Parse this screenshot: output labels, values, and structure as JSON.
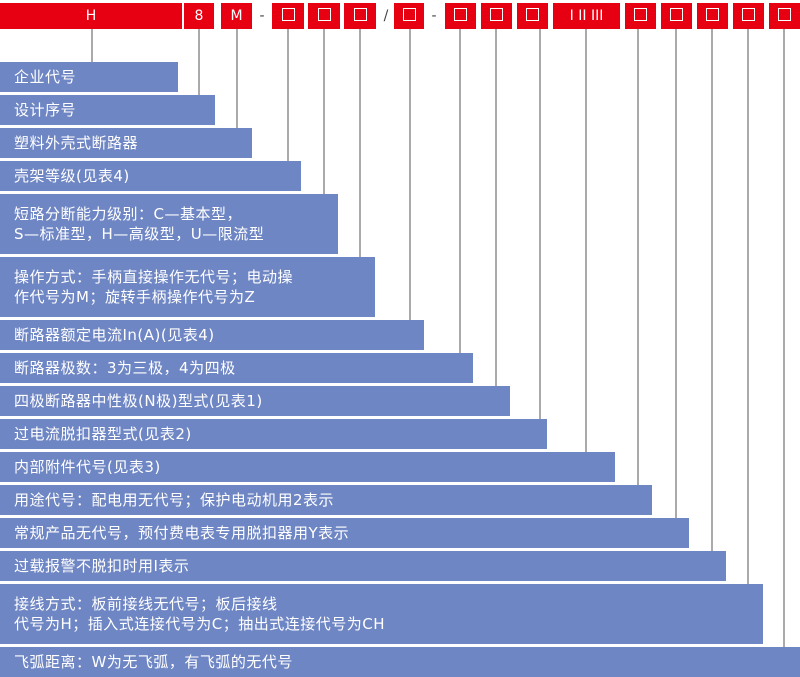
{
  "code_parts": [
    {
      "text": "H",
      "type": "text"
    },
    {
      "text": "8",
      "type": "text"
    },
    {
      "text": "M",
      "type": "text"
    },
    {
      "text": "-",
      "type": "sep"
    },
    {
      "text": "□",
      "type": "square"
    },
    {
      "text": "□",
      "type": "square"
    },
    {
      "text": "□",
      "type": "square"
    },
    {
      "text": "/",
      "type": "sep"
    },
    {
      "text": "□",
      "type": "square"
    },
    {
      "text": "-",
      "type": "sep"
    },
    {
      "text": "□",
      "type": "square"
    },
    {
      "text": "□",
      "type": "square"
    },
    {
      "text": "□",
      "type": "square"
    },
    {
      "text": "I II III",
      "type": "text"
    },
    {
      "text": "□",
      "type": "square"
    },
    {
      "text": "□",
      "type": "square"
    },
    {
      "text": "□",
      "type": "square"
    },
    {
      "text": "□",
      "type": "square"
    },
    {
      "text": "□",
      "type": "square"
    }
  ],
  "items": [
    {
      "lines": [
        "企业代号"
      ]
    },
    {
      "lines": [
        "设计序号"
      ]
    },
    {
      "lines": [
        "塑料外壳式断路器"
      ]
    },
    {
      "lines": [
        "壳架等级(见表4)"
      ]
    },
    {
      "lines": [
        "短路分断能力级别：C—基本型，",
        "S—标准型，H—高级型，U—限流型"
      ]
    },
    {
      "lines": [
        "操作方式：手柄直接操作无代号；电动操",
        "作代号为M；旋转手柄操作代号为Z"
      ]
    },
    {
      "lines": [
        "断路器额定电流In(A)(见表4)"
      ]
    },
    {
      "lines": [
        "断路器极数：3为三极，4为四极"
      ]
    },
    {
      "lines": [
        "四极断路器中性极(N极)型式(见表1)"
      ]
    },
    {
      "lines": [
        "过电流脱扣器型式(见表2)"
      ]
    },
    {
      "lines": [
        "内部附件代号(见表3)"
      ]
    },
    {
      "lines": [
        "用途代号：配电用无代号；保护电动机用2表示"
      ]
    },
    {
      "lines": [
        "常规产品无代号，预付费电表专用脱扣器用Y表示"
      ]
    },
    {
      "lines": [
        "过载报警不脱扣时用I表示"
      ]
    },
    {
      "lines": [
        "接线方式：板前接线无代号；板后接线",
        "代号为H；插入式连接代号为C；抽出式连接代号为CH"
      ]
    },
    {
      "lines": [
        "飞弧距离：W为无飞弧，有飞弧的无代号"
      ]
    }
  ],
  "colors": {
    "code_bg": "#e60012",
    "bar_bg": "#6f86c4",
    "line": "#555555"
  }
}
